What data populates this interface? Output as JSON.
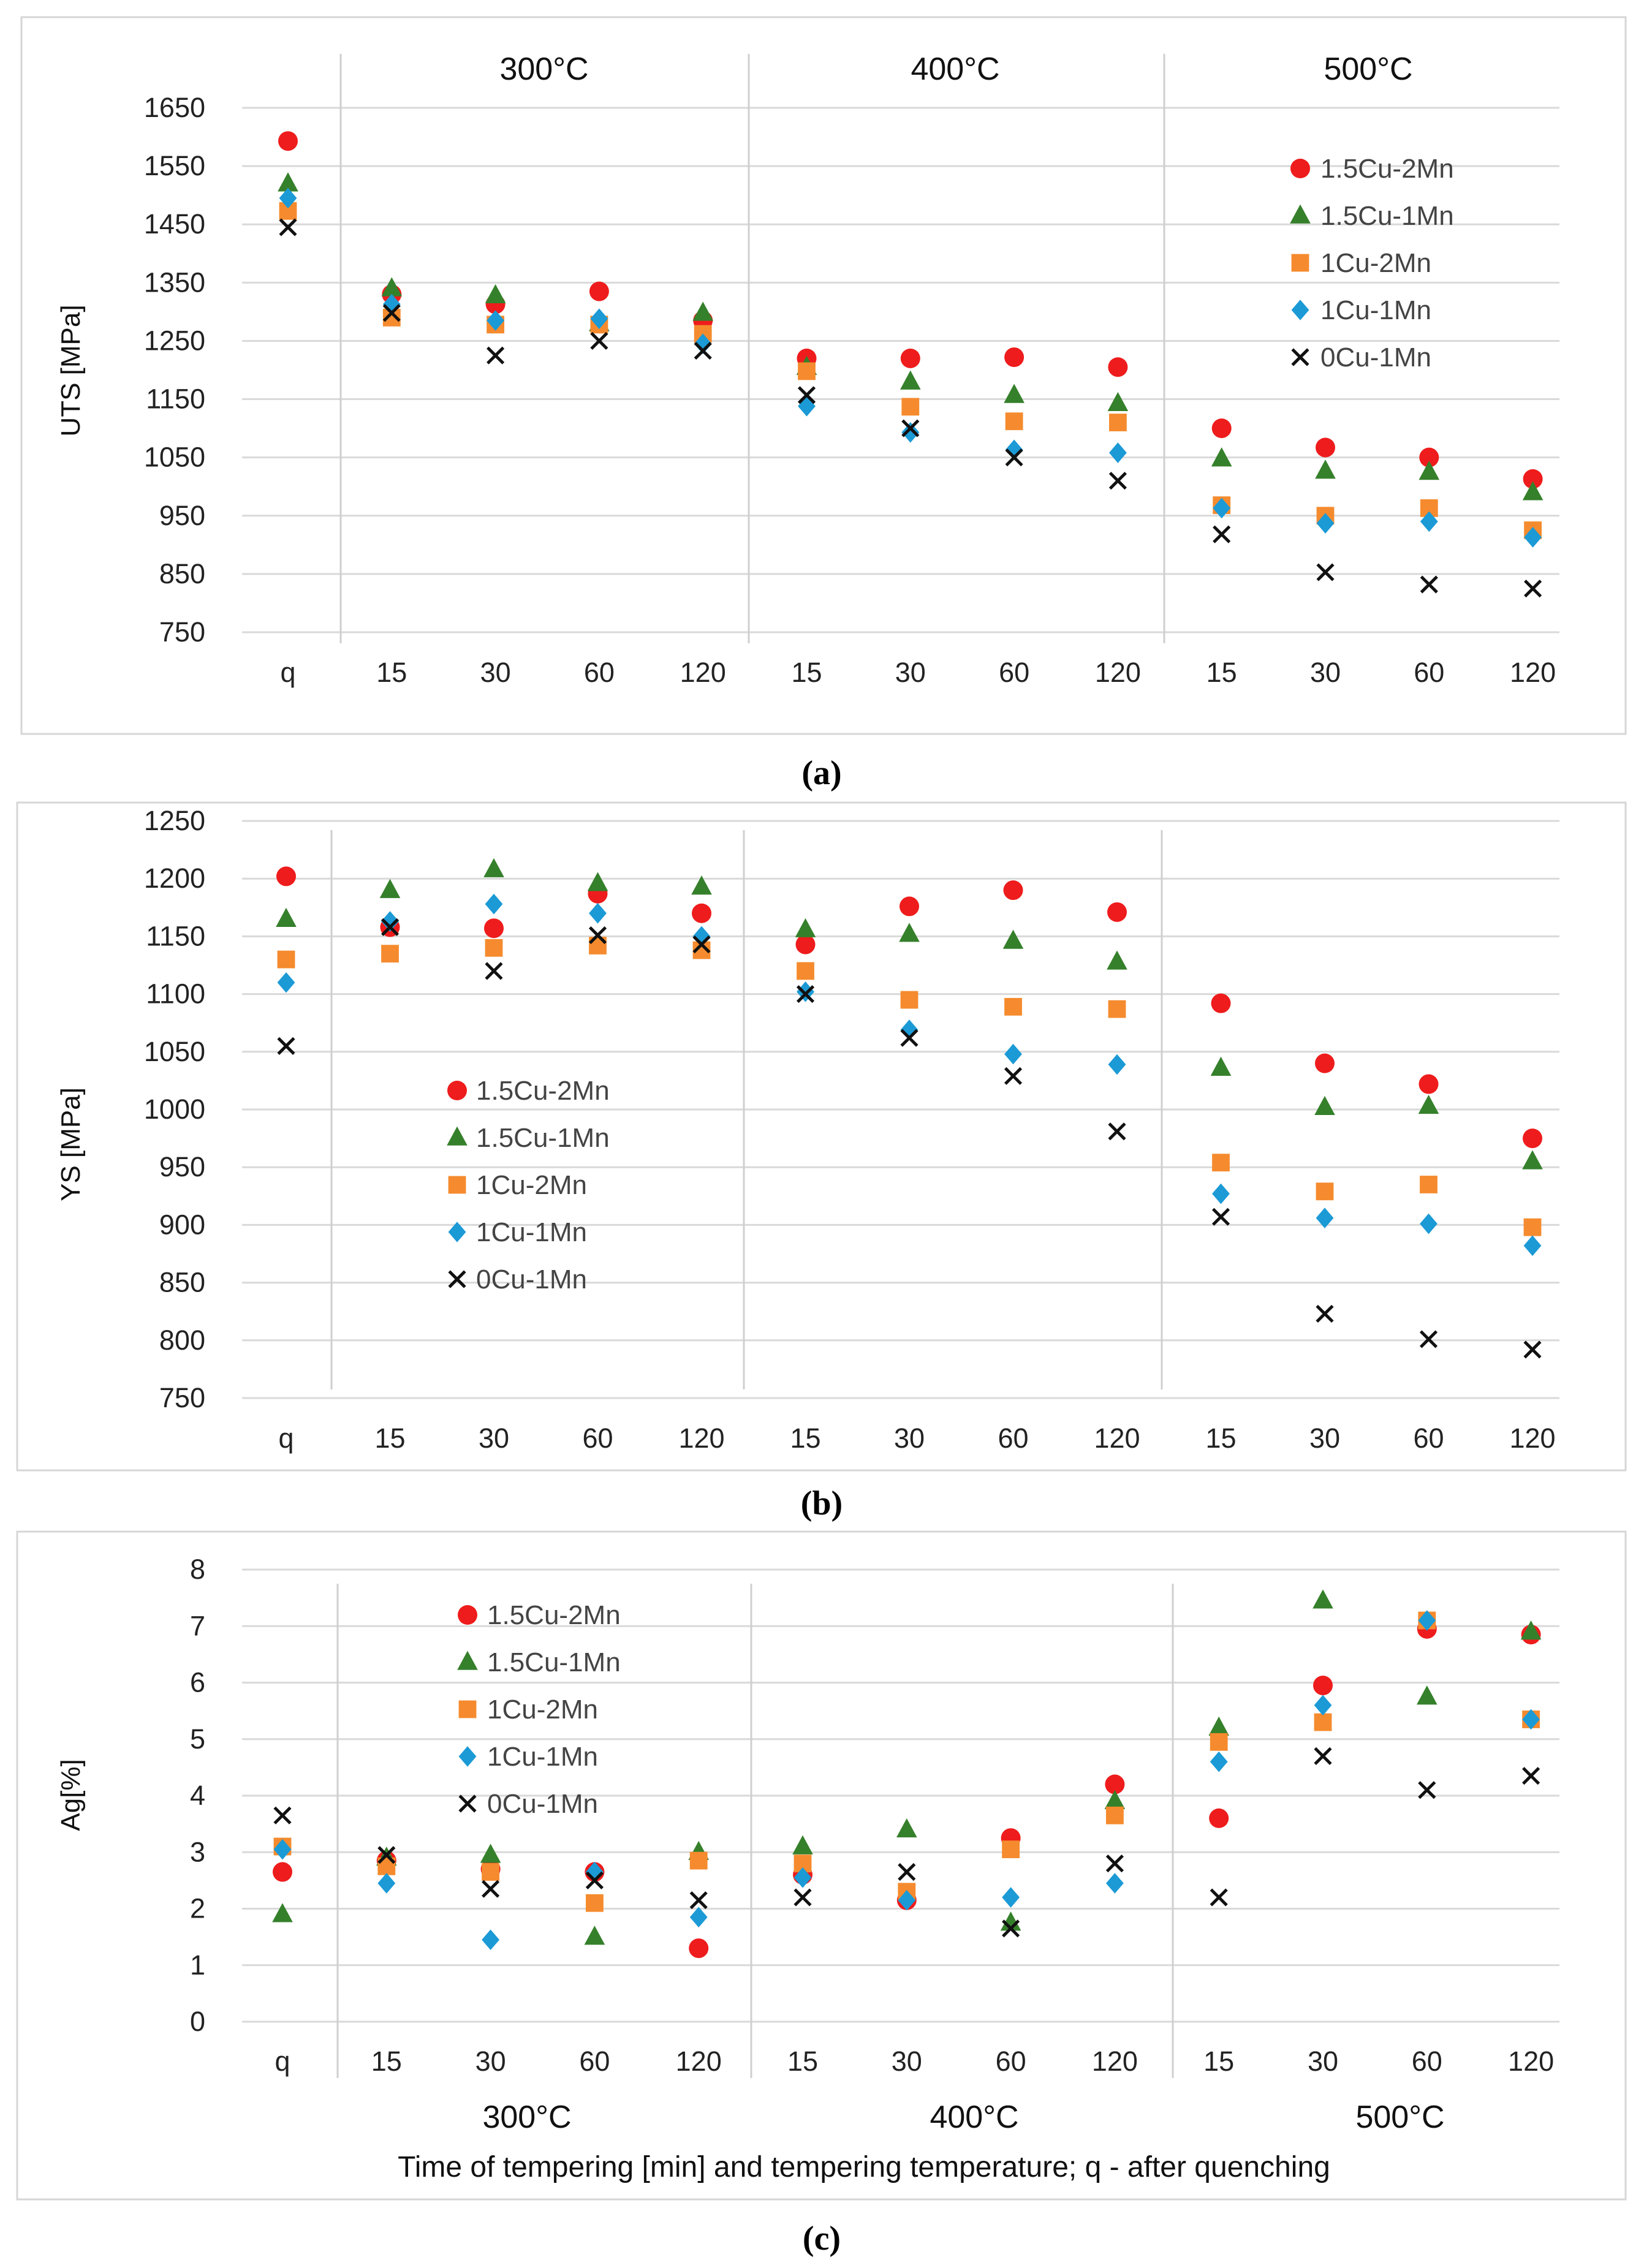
{
  "colors": {
    "1.5Cu-2Mn": "#ee1c1c",
    "1.5Cu-1Mn": "#35802b",
    "1Cu-2Mn": "#f58b2e",
    "1Cu-1Mn": "#1b9ad6",
    "0Cu-1Mn": "#111111"
  },
  "series_names": [
    "1.5Cu-2Mn",
    "1.5Cu-1Mn",
    "1Cu-2Mn",
    "1Cu-1Mn",
    "0Cu-1Mn"
  ],
  "panel_labels": [
    "(a)",
    "(b)",
    "(c)"
  ],
  "x_title": "Time of tempering [min] and tempering temperature; q - after quenching",
  "chart_data": [
    {
      "type": "scatter",
      "panel": "(a)",
      "ylabel": "UTS [MPa]",
      "ylim": [
        750,
        1650
      ],
      "yticks": [
        750,
        850,
        950,
        1050,
        1150,
        1250,
        1350,
        1450,
        1550,
        1650
      ],
      "categories": [
        "q",
        "15",
        "30",
        "60",
        "120",
        "15",
        "30",
        "60",
        "120",
        "15",
        "30",
        "60",
        "120"
      ],
      "temperature_groups": [
        "300°C",
        "400°C",
        "500°C"
      ],
      "temperature_position": "top",
      "legend": "top-right",
      "series": [
        {
          "name": "1.5Cu-2Mn",
          "marker": "circle",
          "values": [
            1593,
            1330,
            1313,
            1335,
            1285,
            1220,
            1220,
            1222,
            1205,
            1100,
            1067,
            1050,
            1013
          ]
        },
        {
          "name": "1.5Cu-1Mn",
          "marker": "triangle",
          "values": [
            1520,
            1340,
            1328,
            1280,
            1298,
            1205,
            1180,
            1157,
            1143,
            1048,
            1027,
            1025,
            990
          ]
        },
        {
          "name": "1Cu-2Mn",
          "marker": "square",
          "values": [
            1473,
            1290,
            1278,
            1278,
            1262,
            1198,
            1137,
            1112,
            1110,
            968,
            950,
            963,
            925
          ]
        },
        {
          "name": "1Cu-1Mn",
          "marker": "diamond",
          "values": [
            1495,
            1313,
            1285,
            1288,
            1245,
            1138,
            1093,
            1063,
            1058,
            963,
            937,
            940,
            913
          ]
        },
        {
          "name": "0Cu-1Mn",
          "marker": "x",
          "values": [
            1445,
            1298,
            1225,
            1250,
            1233,
            1157,
            1100,
            1050,
            1010,
            918,
            853,
            832,
            825
          ]
        }
      ]
    },
    {
      "type": "scatter",
      "panel": "(b)",
      "ylabel": "YS [MPa]",
      "ylim": [
        750,
        1250
      ],
      "yticks": [
        750,
        800,
        850,
        900,
        950,
        1000,
        1050,
        1100,
        1150,
        1200,
        1250
      ],
      "categories": [
        "q",
        "15",
        "30",
        "60",
        "120",
        "15",
        "30",
        "60",
        "120",
        "15",
        "30",
        "60",
        "120"
      ],
      "legend": "center-left",
      "series": [
        {
          "name": "1.5Cu-2Mn",
          "marker": "circle",
          "values": [
            1202,
            1158,
            1157,
            1187,
            1170,
            1143,
            1176,
            1190,
            1171,
            1092,
            1040,
            1022,
            975
          ]
        },
        {
          "name": "1.5Cu-1Mn",
          "marker": "triangle",
          "values": [
            1165,
            1190,
            1208,
            1196,
            1193,
            1156,
            1152,
            1146,
            1128,
            1036,
            1002,
            1003,
            955
          ]
        },
        {
          "name": "1Cu-2Mn",
          "marker": "square",
          "values": [
            1130,
            1135,
            1140,
            1142,
            1138,
            1120,
            1095,
            1089,
            1087,
            954,
            929,
            935,
            898
          ]
        },
        {
          "name": "1Cu-1Mn",
          "marker": "diamond",
          "values": [
            1110,
            1163,
            1178,
            1170,
            1150,
            1102,
            1069,
            1048,
            1039,
            927,
            906,
            901,
            882
          ]
        },
        {
          "name": "0Cu-1Mn",
          "marker": "x",
          "values": [
            1055,
            1158,
            1120,
            1151,
            1143,
            1100,
            1062,
            1029,
            981,
            907,
            823,
            801,
            792
          ]
        }
      ]
    },
    {
      "type": "scatter",
      "panel": "(c)",
      "ylabel": "Ag[%]",
      "ylim": [
        0,
        8
      ],
      "yticks": [
        0,
        1,
        2,
        3,
        4,
        5,
        6,
        7,
        8
      ],
      "categories": [
        "q",
        "15",
        "30",
        "60",
        "120",
        "15",
        "30",
        "60",
        "120",
        "15",
        "30",
        "60",
        "120"
      ],
      "temperature_groups": [
        "300°C",
        "400°C",
        "500°C"
      ],
      "temperature_position": "bottom",
      "legend": "top-left",
      "series": [
        {
          "name": "1.5Cu-2Mn",
          "marker": "circle",
          "values": [
            2.65,
            2.85,
            2.7,
            2.65,
            1.3,
            2.6,
            2.15,
            3.25,
            4.2,
            3.6,
            5.95,
            6.95,
            6.85
          ]
        },
        {
          "name": "1.5Cu-1Mn",
          "marker": "triangle",
          "values": [
            1.9,
            2.9,
            2.95,
            1.5,
            3.0,
            3.1,
            3.4,
            1.75,
            3.9,
            5.2,
            7.45,
            5.75,
            6.9
          ]
        },
        {
          "name": "1Cu-2Mn",
          "marker": "square",
          "values": [
            3.1,
            2.75,
            2.65,
            2.1,
            2.85,
            2.8,
            2.3,
            3.05,
            3.65,
            4.95,
            5.3,
            7.1,
            5.35
          ]
        },
        {
          "name": "1Cu-1Mn",
          "marker": "diamond",
          "values": [
            3.05,
            2.45,
            1.45,
            2.65,
            1.85,
            2.55,
            2.15,
            2.2,
            2.45,
            4.6,
            5.6,
            7.1,
            5.35
          ]
        },
        {
          "name": "0Cu-1Mn",
          "marker": "x",
          "values": [
            3.65,
            2.95,
            2.35,
            2.5,
            2.15,
            2.2,
            2.65,
            1.65,
            2.8,
            2.2,
            4.7,
            4.1,
            4.35
          ]
        }
      ]
    }
  ]
}
